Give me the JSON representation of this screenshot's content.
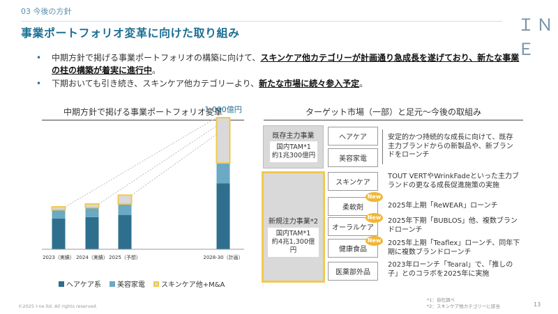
{
  "header": {
    "section": "03 今後の方針",
    "title": "事業ポートフォリオ変革に向けた取り組み",
    "logo": "I·N·E"
  },
  "bullets": [
    {
      "pre": "中期方針で掲げる事業ポートフォリオの構築に向けて、",
      "em1": "スキンケア他カテゴリーが計画通り急成長を遂げており、新たな事業の柱の構築が着実に進行中",
      "post": "。"
    },
    {
      "pre": "下期おいても引き続き、スキンケア他カテゴリーより、",
      "em1": "新たな市場に続々参入予定",
      "post": "。"
    }
  ],
  "left_title": "中期方針で掲げる事業ポートフォリオ変革",
  "right_title": "ターゲット市場（一部）と足元～今後の取組み",
  "chart_data": {
    "type": "bar",
    "stacked": true,
    "categories": [
      "2023（実績）",
      "2024（実績）",
      "2025（予想）",
      "2028-30（計画）"
    ],
    "series": [
      {
        "name": "ヘアケア系",
        "color": "#2e6f8e",
        "values": [
          42,
          44,
          47,
          90
        ]
      },
      {
        "name": "美容家電",
        "color": "#6ba9c4",
        "values": [
          12,
          13,
          15,
          28
        ]
      },
      {
        "name": "スキンケア他+M&A",
        "color": "#d9d9d9",
        "border": "#f2c94c",
        "values": [
          4,
          5,
          12,
          62
        ]
      }
    ],
    "annotation": "1,000億円",
    "grid": false
  },
  "legend": [
    "ヘアケア系",
    "美容家電",
    "スキンケア他+M&A"
  ],
  "existing": {
    "label": "既存主力事業",
    "tam_line1": "国内TAM*1",
    "tam_line2": "約1兆300億円",
    "categories": [
      "ヘアケア",
      "美容家電"
    ],
    "desc": "安定的かつ持続的な成長に向けて、既存主力ブランドからの新製品や、新ブランドをローンチ"
  },
  "new_biz": {
    "label": "新規注力事業*2",
    "tam_line1": "国内TAM*1",
    "tam_line2": "約4兆1,300億円",
    "rows": [
      {
        "category": "スキンケア",
        "desc": "TOUT VERTやWrinkFadeといった主力ブランドの更なる成長促進施策の実施",
        "new": false
      },
      {
        "category": "柔軟剤",
        "desc": "2025年上期「ReWEAR」ローンチ",
        "new": true
      },
      {
        "category": "オーラルケア",
        "desc": "2025年下期「BUBLOS」他、複数ブランドローンチ",
        "new": true
      },
      {
        "category": "健康食品",
        "desc": "2025年上期「Teaflex」ローンチ、同年下期に複数ブランドローンチ",
        "new": true
      },
      {
        "category": "医薬部外品",
        "desc": "2023年ローンチ「Tearal」で、「推しの子」とのコラボを2025年に実施",
        "new": false
      }
    ],
    "badge": "New"
  },
  "footer": {
    "copyright": "©2025 I-ne ltd. All rights reserved.",
    "note1": "*1：自社調べ",
    "note2": "*2：スキンケア他カテゴリーに該当",
    "page": "13"
  }
}
